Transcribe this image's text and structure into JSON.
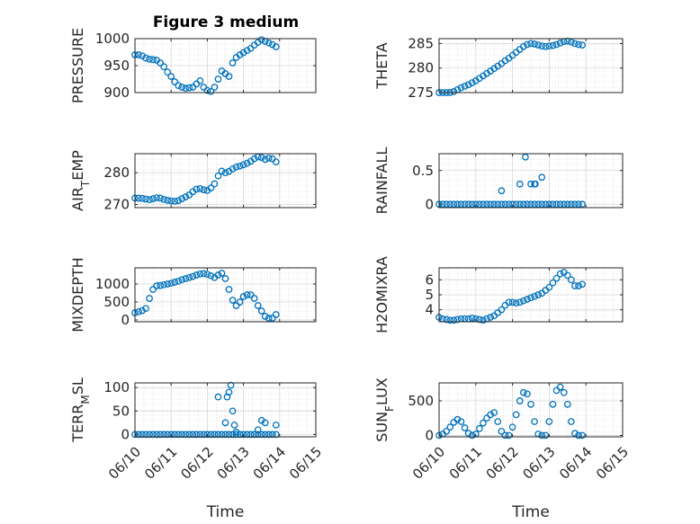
{
  "figure": {
    "title": "Figure 3 medium"
  },
  "colors": {
    "marker": "#0072BD",
    "axis": "#262626",
    "grid": "#d0d0d0"
  },
  "chart_data": [
    {
      "type": "scatter",
      "id": "pressure",
      "ylabel": "PRESSURE",
      "ylim": [
        900,
        1000
      ],
      "yticks": [
        900,
        950,
        1000
      ],
      "yticklabels": [
        "900",
        "950",
        "1000"
      ],
      "xlim": [
        0,
        5
      ],
      "xticks": [
        0,
        1,
        2,
        3,
        4,
        5
      ],
      "xticklabels": [],
      "grid": true,
      "x": [
        0.0,
        0.1,
        0.2,
        0.3,
        0.4,
        0.5,
        0.6,
        0.7,
        0.8,
        0.9,
        1.0,
        1.1,
        1.2,
        1.3,
        1.4,
        1.5,
        1.6,
        1.7,
        1.8,
        1.9,
        2.0,
        2.1,
        2.2,
        2.3,
        2.4,
        2.5,
        2.6,
        2.7,
        2.8,
        2.9,
        3.0,
        3.1,
        3.2,
        3.3,
        3.4,
        3.5,
        3.6,
        3.7,
        3.8,
        3.9
      ],
      "y": [
        970,
        970,
        968,
        964,
        962,
        961,
        960,
        955,
        948,
        938,
        930,
        920,
        913,
        910,
        908,
        909,
        910,
        916,
        922,
        910,
        904,
        902,
        910,
        925,
        940,
        935,
        930,
        955,
        965,
        970,
        974,
        978,
        982,
        988,
        993,
        998,
        995,
        992,
        989,
        985
      ]
    },
    {
      "type": "scatter",
      "id": "theta",
      "ylabel": "THETA",
      "ylim": [
        275,
        286
      ],
      "yticks": [
        275,
        280,
        285
      ],
      "yticklabels": [
        "275",
        "280",
        "285"
      ],
      "xlim": [
        0,
        5
      ],
      "xticks": [
        0,
        1,
        2,
        3,
        4,
        5
      ],
      "xticklabels": [],
      "grid": true,
      "x": [
        0.0,
        0.1,
        0.2,
        0.3,
        0.4,
        0.5,
        0.6,
        0.7,
        0.8,
        0.9,
        1.0,
        1.1,
        1.2,
        1.3,
        1.4,
        1.5,
        1.6,
        1.7,
        1.8,
        1.9,
        2.0,
        2.1,
        2.2,
        2.3,
        2.4,
        2.5,
        2.6,
        2.7,
        2.8,
        2.9,
        3.0,
        3.1,
        3.2,
        3.3,
        3.4,
        3.5,
        3.6,
        3.7,
        3.8,
        3.9
      ],
      "y": [
        275,
        275,
        275,
        275,
        275.2,
        275.6,
        276,
        276.3,
        276.6,
        277,
        277.4,
        277.9,
        278.4,
        278.9,
        279.4,
        279.9,
        280.4,
        280.9,
        281.5,
        282,
        282.6,
        283.2,
        283.8,
        284.4,
        284.8,
        285,
        284.9,
        284.7,
        284.5,
        284.4,
        284.5,
        284.6,
        284.8,
        285.1,
        285.4,
        285.5,
        285.3,
        285,
        284.8,
        284.7
      ]
    },
    {
      "type": "scatter",
      "id": "airtemp",
      "ylabel": "AIR",
      "ylabel_sub": "T",
      "ylabel_rest": "EMP",
      "ylim": [
        269,
        286
      ],
      "yticks": [
        270,
        280
      ],
      "yticklabels": [
        "270",
        "280"
      ],
      "xlim": [
        0,
        5
      ],
      "xticks": [
        0,
        1,
        2,
        3,
        4,
        5
      ],
      "xticklabels": [],
      "grid": true,
      "x": [
        0.0,
        0.1,
        0.2,
        0.3,
        0.4,
        0.5,
        0.6,
        0.7,
        0.8,
        0.9,
        1.0,
        1.1,
        1.2,
        1.3,
        1.4,
        1.5,
        1.6,
        1.7,
        1.8,
        1.9,
        2.0,
        2.1,
        2.2,
        2.3,
        2.4,
        2.5,
        2.6,
        2.7,
        2.8,
        2.9,
        3.0,
        3.1,
        3.2,
        3.3,
        3.4,
        3.5,
        3.6,
        3.7,
        3.8,
        3.9
      ],
      "y": [
        272,
        272,
        271.9,
        271.7,
        271.5,
        271.8,
        272.1,
        272,
        271.6,
        271.3,
        271.1,
        271,
        271.2,
        271.8,
        272.4,
        273,
        274,
        274.8,
        275,
        274.6,
        274.4,
        275.2,
        276.5,
        279,
        280.5,
        280,
        280.4,
        281.2,
        281.8,
        282.1,
        282.5,
        283,
        283.6,
        284.4,
        285,
        284.8,
        284.2,
        284.6,
        284.4,
        283.4
      ]
    },
    {
      "type": "scatter",
      "id": "rainfall",
      "ylabel": "RAINFALL",
      "ylim": [
        -0.05,
        0.75
      ],
      "yticks": [
        0,
        0.5
      ],
      "yticklabels": [
        "0",
        "0.5"
      ],
      "xlim": [
        0,
        5
      ],
      "xticks": [
        0,
        1,
        2,
        3,
        4,
        5
      ],
      "xticklabels": [],
      "grid": true,
      "x": [
        0.0,
        0.1,
        0.2,
        0.3,
        0.4,
        0.5,
        0.6,
        0.7,
        0.8,
        0.9,
        1.0,
        1.1,
        1.2,
        1.3,
        1.4,
        1.5,
        1.6,
        1.7,
        1.8,
        1.9,
        2.0,
        2.1,
        2.2,
        2.3,
        2.4,
        2.5,
        2.6,
        2.7,
        2.8,
        2.9,
        3.0,
        3.1,
        3.2,
        3.3,
        3.4,
        3.5,
        3.6,
        3.7,
        3.8,
        3.9,
        1.7,
        2.2,
        2.35,
        2.5,
        2.6,
        2.62,
        2.8
      ],
      "y": [
        0,
        0,
        0,
        0,
        0,
        0,
        0,
        0,
        0,
        0,
        0,
        0,
        0,
        0,
        0,
        0,
        0,
        0,
        0,
        0,
        0,
        0,
        0,
        0,
        0,
        0,
        0,
        0,
        0,
        0,
        0,
        0,
        0,
        0,
        0,
        0,
        0,
        0,
        0,
        0,
        0.2,
        0.3,
        0.7,
        0.3,
        0.3,
        0.3,
        0.4
      ]
    },
    {
      "type": "scatter",
      "id": "mixdepth",
      "ylabel": "MIXDEPTH",
      "ylim": [
        -50,
        1450
      ],
      "yticks": [
        0,
        500,
        1000
      ],
      "yticklabels": [
        "0",
        "500",
        "1000"
      ],
      "xlim": [
        0,
        5
      ],
      "xticks": [
        0,
        1,
        2,
        3,
        4,
        5
      ],
      "xticklabels": [],
      "grid": true,
      "x": [
        0.0,
        0.1,
        0.2,
        0.3,
        0.4,
        0.5,
        0.6,
        0.7,
        0.8,
        0.9,
        1.0,
        1.1,
        1.2,
        1.3,
        1.4,
        1.5,
        1.6,
        1.7,
        1.8,
        1.9,
        2.0,
        2.1,
        2.2,
        2.3,
        2.4,
        2.5,
        2.6,
        2.7,
        2.8,
        2.9,
        3.0,
        3.1,
        3.2,
        3.3,
        3.4,
        3.5,
        3.6,
        3.7,
        3.8,
        3.9
      ],
      "y": [
        200,
        230,
        260,
        320,
        600,
        850,
        950,
        960,
        980,
        1000,
        1020,
        1050,
        1080,
        1120,
        1150,
        1180,
        1210,
        1250,
        1280,
        1290,
        1270,
        1230,
        1180,
        1250,
        1300,
        1150,
        850,
        550,
        400,
        500,
        650,
        700,
        700,
        600,
        400,
        250,
        100,
        50,
        50,
        150
      ]
    },
    {
      "type": "scatter",
      "id": "h2omixra",
      "ylabel": "H2OMIXRA",
      "ylim": [
        3.2,
        6.8
      ],
      "yticks": [
        4,
        5,
        6
      ],
      "yticklabels": [
        "4",
        "5",
        "6"
      ],
      "xlim": [
        0,
        5
      ],
      "xticks": [
        0,
        1,
        2,
        3,
        4,
        5
      ],
      "xticklabels": [],
      "grid": true,
      "x": [
        0.0,
        0.1,
        0.2,
        0.3,
        0.4,
        0.5,
        0.6,
        0.7,
        0.8,
        0.9,
        1.0,
        1.1,
        1.2,
        1.3,
        1.4,
        1.5,
        1.6,
        1.7,
        1.8,
        1.9,
        2.0,
        2.1,
        2.2,
        2.3,
        2.4,
        2.5,
        2.6,
        2.7,
        2.8,
        2.9,
        3.0,
        3.1,
        3.2,
        3.3,
        3.4,
        3.5,
        3.6,
        3.7,
        3.8,
        3.9
      ],
      "y": [
        3.5,
        3.4,
        3.35,
        3.3,
        3.3,
        3.35,
        3.4,
        3.4,
        3.4,
        3.45,
        3.4,
        3.35,
        3.3,
        3.4,
        3.5,
        3.6,
        3.8,
        4.0,
        4.3,
        4.5,
        4.5,
        4.45,
        4.5,
        4.6,
        4.7,
        4.8,
        4.9,
        5.0,
        5.1,
        5.3,
        5.5,
        5.8,
        6.1,
        6.4,
        6.5,
        6.3,
        6.0,
        5.6,
        5.6,
        5.7
      ]
    },
    {
      "type": "scatter",
      "id": "terrmsl",
      "ylabel": "TERR",
      "ylabel_sub": "M",
      "ylabel_rest": "SL",
      "ylim": [
        -5,
        110
      ],
      "yticks": [
        0,
        50,
        100
      ],
      "yticklabels": [
        "0",
        "50",
        "100"
      ],
      "xlim": [
        0,
        5
      ],
      "xticks": [
        0,
        1,
        2,
        3,
        4,
        5
      ],
      "xticklabels": [
        "06/10",
        "06/11",
        "06/12",
        "06/13",
        "06/14",
        "06/15"
      ],
      "xlabel": "Time",
      "grid": true,
      "x": [
        0.0,
        0.1,
        0.2,
        0.3,
        0.4,
        0.5,
        0.6,
        0.7,
        0.8,
        0.9,
        1.0,
        1.1,
        1.2,
        1.3,
        1.4,
        1.5,
        1.6,
        1.7,
        1.8,
        1.9,
        2.0,
        2.1,
        2.2,
        2.3,
        2.4,
        2.5,
        2.6,
        2.7,
        2.8,
        2.9,
        3.0,
        3.1,
        3.2,
        3.3,
        3.4,
        3.5,
        3.6,
        3.7,
        3.8,
        3.9,
        2.3,
        2.55,
        2.6,
        2.65,
        2.7,
        2.75,
        2.5,
        2.8,
        3.4,
        3.5,
        3.6,
        3.9
      ],
      "y": [
        0,
        0,
        0,
        0,
        0,
        0,
        0,
        0,
        0,
        0,
        0,
        0,
        0,
        0,
        0,
        0,
        0,
        0,
        0,
        0,
        0,
        0,
        0,
        0,
        0,
        0,
        0,
        0,
        0,
        0,
        0,
        0,
        0,
        0,
        0,
        0,
        0,
        0,
        0,
        0,
        80,
        80,
        90,
        105,
        50,
        20,
        25,
        5,
        10,
        30,
        25,
        20
      ]
    },
    {
      "type": "scatter",
      "id": "sunflux",
      "ylabel": "SUN",
      "ylabel_sub": "F",
      "ylabel_rest": "LUX",
      "ylim": [
        -20,
        760
      ],
      "yticks": [
        0,
        500
      ],
      "yticklabels": [
        "0",
        "500"
      ],
      "xlim": [
        0,
        5
      ],
      "xticks": [
        0,
        1,
        2,
        3,
        4,
        5
      ],
      "xticklabels": [
        "06/10",
        "06/11",
        "06/12",
        "06/13",
        "06/14",
        "06/15"
      ],
      "xlabel": "Time",
      "grid": true,
      "x": [
        0.0,
        0.1,
        0.2,
        0.3,
        0.4,
        0.5,
        0.6,
        0.7,
        0.8,
        0.9,
        1.0,
        1.1,
        1.2,
        1.3,
        1.4,
        1.5,
        1.6,
        1.7,
        1.8,
        1.9,
        2.0,
        2.1,
        2.2,
        2.3,
        2.4,
        2.5,
        2.6,
        2.7,
        2.8,
        2.9,
        3.0,
        3.1,
        3.2,
        3.3,
        3.4,
        3.5,
        3.6,
        3.7,
        3.8,
        3.9
      ],
      "y": [
        0,
        20,
        60,
        120,
        190,
        230,
        200,
        110,
        30,
        0,
        20,
        100,
        180,
        250,
        300,
        330,
        200,
        60,
        0,
        0,
        120,
        300,
        500,
        620,
        600,
        450,
        200,
        20,
        0,
        0,
        200,
        450,
        650,
        700,
        620,
        450,
        200,
        30,
        0,
        0
      ]
    }
  ]
}
